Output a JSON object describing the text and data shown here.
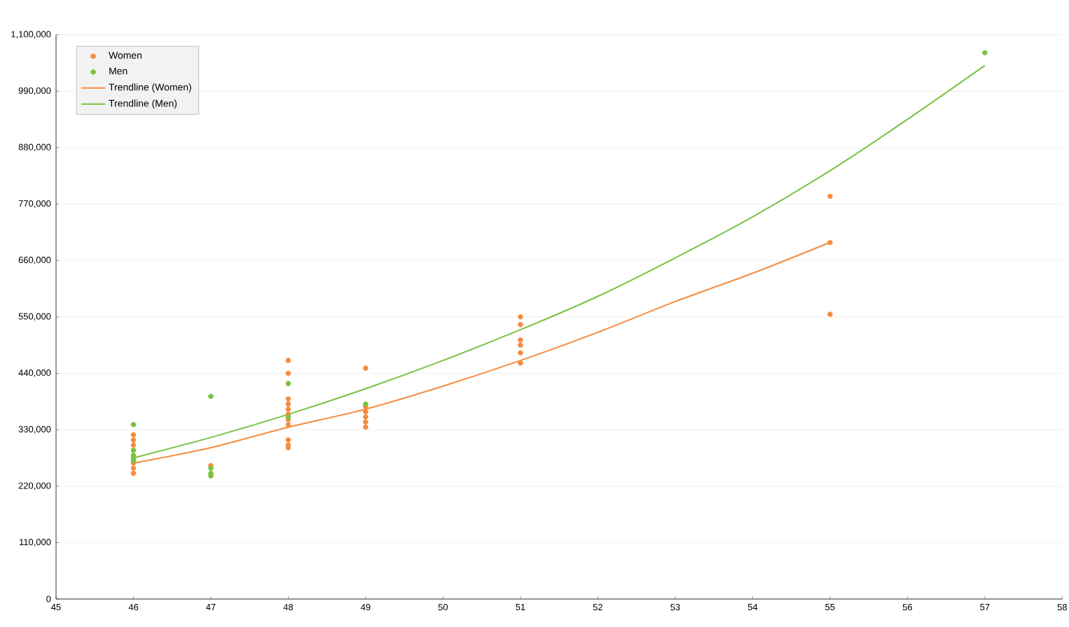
{
  "chart_data": {
    "type": "scatter",
    "xlim": [
      45,
      58
    ],
    "xticks": [
      45,
      46,
      47,
      48,
      49,
      50,
      51,
      52,
      53,
      54,
      55,
      56,
      57,
      58
    ],
    "ylim": [
      0,
      1100000
    ],
    "yticks": [
      {
        "value": 0,
        "label": "0"
      },
      {
        "value": 110000,
        "label": "110,000"
      },
      {
        "value": 220000,
        "label": "220,000"
      },
      {
        "value": 330000,
        "label": "330,000"
      },
      {
        "value": 440000,
        "label": "440,000"
      },
      {
        "value": 550000,
        "label": "550,000"
      },
      {
        "value": 660000,
        "label": "660,000"
      },
      {
        "value": 770000,
        "label": "770,000"
      },
      {
        "value": 880000,
        "label": "880,000"
      },
      {
        "value": 990000,
        "label": "990,000"
      },
      {
        "value": 1100000,
        "label": "1,100,000"
      }
    ],
    "grid": "y",
    "legend": "top left",
    "series": [
      {
        "name": "Women",
        "marker": "circle",
        "color": "#f58b3f",
        "x": [
          46,
          46,
          46,
          46,
          46,
          46,
          47,
          48,
          48,
          48,
          48,
          48,
          48,
          48,
          48,
          48,
          48,
          48,
          49,
          49,
          49,
          49,
          49,
          49,
          51,
          51,
          51,
          51,
          51,
          51,
          55,
          55,
          55
        ],
        "values": [
          245000,
          255000,
          265000,
          300000,
          310000,
          320000,
          260000,
          465000,
          440000,
          390000,
          380000,
          370000,
          360000,
          350000,
          340000,
          310000,
          300000,
          295000,
          450000,
          375000,
          365000,
          355000,
          345000,
          335000,
          550000,
          535000,
          505000,
          495000,
          480000,
          460000,
          785000,
          695000,
          555000
        ]
      },
      {
        "name": "Men",
        "marker": "circle",
        "color": "#7ac143",
        "x": [
          46,
          46,
          46,
          46,
          46,
          47,
          47,
          47,
          47,
          48,
          48,
          49,
          57
        ],
        "values": [
          340000,
          290000,
          280000,
          275000,
          270000,
          395000,
          255000,
          245000,
          240000,
          420000,
          355000,
          380000,
          1065000
        ]
      },
      {
        "name": "Trendline (Women)",
        "type": "line",
        "marker": "none",
        "line_style": "solid",
        "color": "#f58b3f",
        "x": [
          46,
          47,
          48,
          49,
          50,
          51,
          52,
          53,
          54,
          55
        ],
        "values": [
          265000,
          295000,
          335000,
          370000,
          415000,
          465000,
          520000,
          580000,
          635000,
          695000
        ]
      },
      {
        "name": "Trendline (Men)",
        "type": "line",
        "marker": "none",
        "line_style": "solid",
        "color": "#7ac143",
        "x": [
          46,
          47,
          48,
          49,
          50,
          51,
          52,
          53,
          54,
          55,
          56,
          57
        ],
        "values": [
          275000,
          315000,
          360000,
          410000,
          465000,
          525000,
          590000,
          665000,
          745000,
          835000,
          935000,
          1040000
        ]
      }
    ]
  }
}
